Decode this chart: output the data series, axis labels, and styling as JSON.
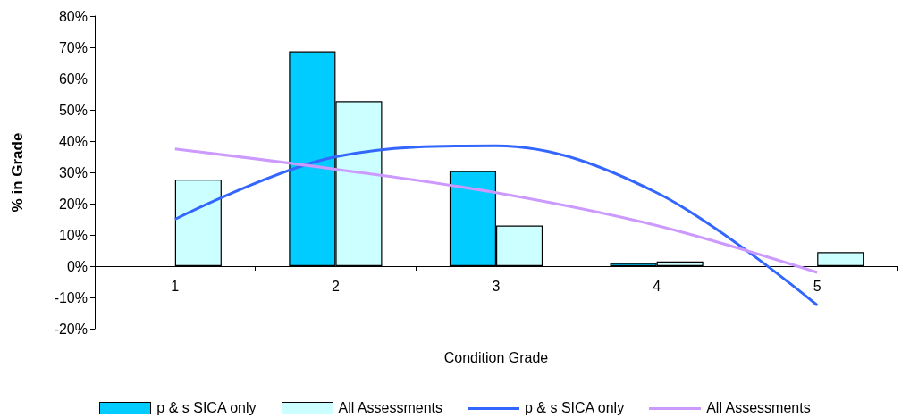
{
  "chart_data": {
    "type": "bar",
    "xlabel": "Condition Grade",
    "ylabel": "% in Grade",
    "categories": [
      "1",
      "2",
      "3",
      "4",
      "5"
    ],
    "series": [
      {
        "name": "p & s SICA only",
        "color": "#00ccff",
        "values": [
          null,
          68.7,
          30.4,
          1,
          null
        ]
      },
      {
        "name": "All Assessments",
        "color": "#ccffff",
        "values": [
          27.7,
          52.8,
          13,
          1.5,
          4.5
        ]
      },
      {
        "name": "p & s SICA only",
        "type": "line",
        "color": "#3366ff",
        "values": [
          15,
          35,
          38.5,
          23.5,
          -12.5
        ]
      },
      {
        "name": "All Assessments",
        "type": "line",
        "color": "#cc99ff",
        "values": [
          37.5,
          31,
          23.5,
          13,
          -2
        ]
      }
    ],
    "ylim": [
      -20,
      80
    ],
    "yticks": [
      {
        "value": -20,
        "label": "-20%"
      },
      {
        "value": -10,
        "label": "-10%"
      },
      {
        "value": 0,
        "label": "0%"
      },
      {
        "value": 10,
        "label": "10%"
      },
      {
        "value": 20,
        "label": "20%"
      },
      {
        "value": 30,
        "label": "30%"
      },
      {
        "value": 40,
        "label": "40%"
      },
      {
        "value": 50,
        "label": "50%"
      },
      {
        "value": 60,
        "label": "60%"
      },
      {
        "value": 70,
        "label": "70%"
      },
      {
        "value": 80,
        "label": "80%"
      }
    ],
    "legend": "bottom",
    "marker": "none"
  }
}
